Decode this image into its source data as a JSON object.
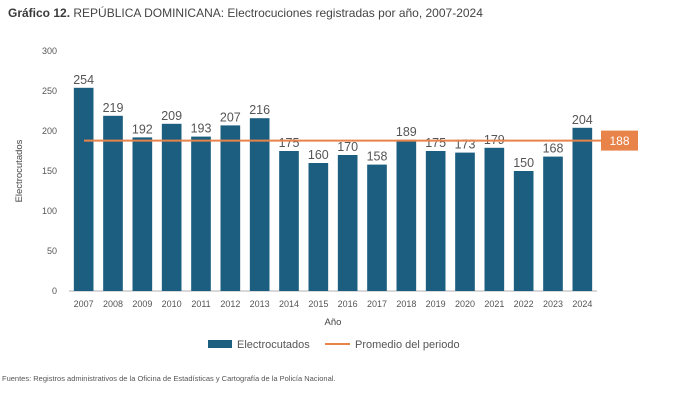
{
  "title": {
    "number": "Gráfico 12.",
    "text": "REPÚBLICA DOMINICANA: Electrocuciones registradas por año, 2007-2024"
  },
  "chart_data": {
    "type": "bar",
    "categories": [
      "2007",
      "2008",
      "2009",
      "2010",
      "2011",
      "2012",
      "2013",
      "2014",
      "2015",
      "2016",
      "2017",
      "2018",
      "2019",
      "2020",
      "2021",
      "2022",
      "2023",
      "2024"
    ],
    "series": [
      {
        "name": "Electrocutados",
        "values": [
          254,
          219,
          192,
          209,
          193,
          207,
          216,
          175,
          160,
          170,
          158,
          189,
          175,
          173,
          179,
          150,
          168,
          204
        ],
        "color": "#1b5e80"
      }
    ],
    "reference_line": {
      "name": "Promedio del periodo",
      "value": 188,
      "label": "188",
      "color": "#e8834a"
    },
    "xlabel": "Año",
    "ylabel": "Electrocutados",
    "ylim": [
      0,
      300
    ],
    "yticks": [
      0,
      50,
      100,
      150,
      200,
      250,
      300
    ],
    "grid": false,
    "legend_position": "bottom"
  },
  "footer": "Fuentes: Registros administrativos de la Oficina de Estadísticas y Cartografía de la Policía Nacional."
}
